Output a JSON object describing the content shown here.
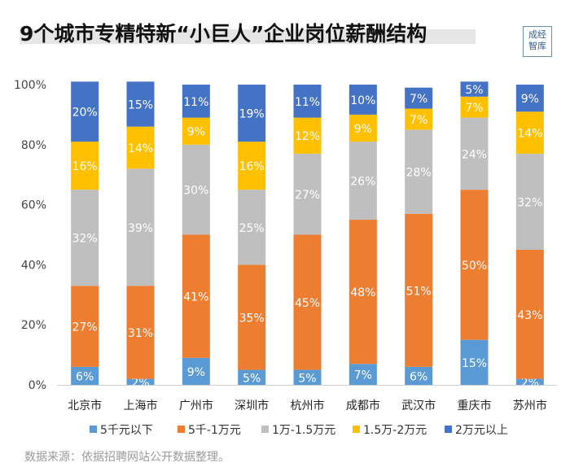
{
  "title": "9个城市专精特新“小巨人”企业岗位薪酬结构",
  "logo_text": [
    "成经",
    "智库"
  ],
  "source": "数据来源：依据招聘网站公开数据整理。",
  "chart_data": {
    "type": "bar",
    "stacked": true,
    "percent": true,
    "categories": [
      "北京市",
      "上海市",
      "广州市",
      "深圳市",
      "杭州市",
      "成都市",
      "武汉市",
      "重庆市",
      "苏州市"
    ],
    "series": [
      {
        "name": "5千元以下",
        "color": "#5b9bd5",
        "values": [
          6,
          2,
          9,
          5,
          5,
          7,
          6,
          15,
          2
        ]
      },
      {
        "name": "5千-1万元",
        "color": "#ed7d31",
        "values": [
          27,
          31,
          41,
          35,
          45,
          48,
          51,
          50,
          43
        ]
      },
      {
        "name": "1万-1.5万元",
        "color": "#bfbfbf",
        "values": [
          32,
          39,
          30,
          25,
          27,
          26,
          28,
          24,
          32
        ]
      },
      {
        "name": "1.5万-2万元",
        "color": "#ffc000",
        "values": [
          16,
          14,
          9,
          16,
          12,
          9,
          7,
          7,
          14
        ]
      },
      {
        "name": "2万元以上",
        "color": "#4472c4",
        "values": [
          20,
          15,
          11,
          19,
          11,
          10,
          7,
          5,
          9
        ]
      }
    ],
    "yticks": [
      "0%",
      "20%",
      "40%",
      "60%",
      "80%",
      "100%"
    ],
    "ylim": [
      0,
      100
    ],
    "legend_position": "bottom"
  }
}
